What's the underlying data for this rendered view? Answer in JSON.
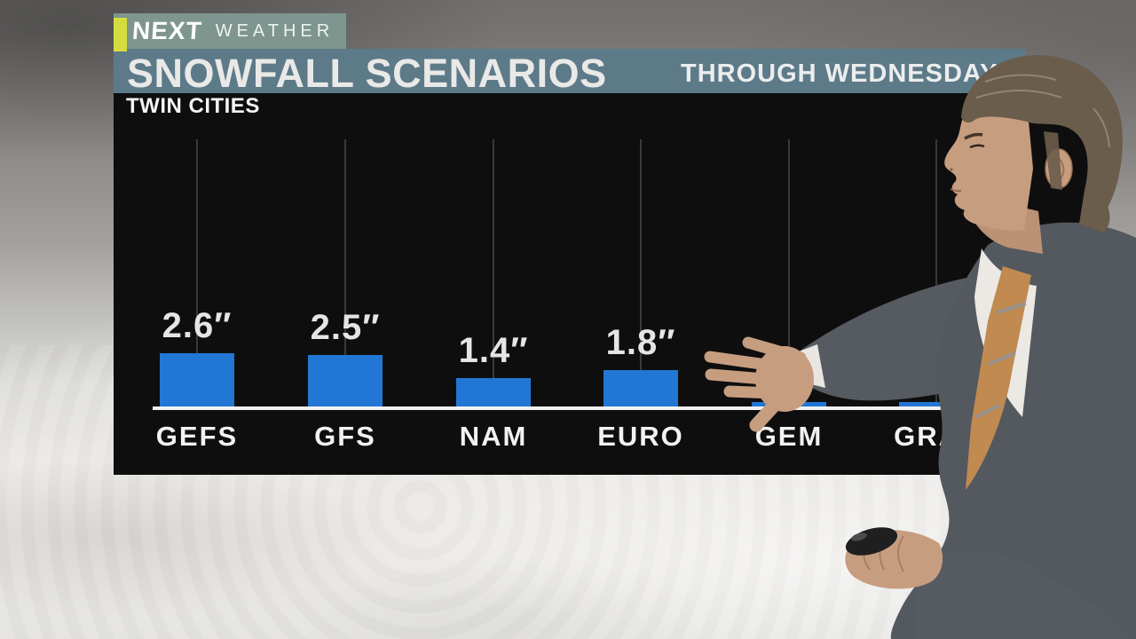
{
  "logo": {
    "brand": "NEXT",
    "product": "WEATHER"
  },
  "header": {
    "title": "SNOWFALL SCENARIOS",
    "banner": "THROUGH WEDNESDAY"
  },
  "chart_data": {
    "type": "bar",
    "title": "SNOWFALL SCENARIOS",
    "subtitle": "TWIN CITIES",
    "period": "THROUGH WEDNESDAY",
    "unit": "inches",
    "categories": [
      "GEFS",
      "GFS",
      "NAM",
      "EURO",
      "GEM",
      "GRAF"
    ],
    "values": [
      2.6,
      2.5,
      1.4,
      1.8,
      0.2,
      0.2
    ],
    "value_labels": [
      "2.6″",
      "2.5″",
      "1.4″",
      "1.8″",
      "",
      ""
    ],
    "bar_color": "#2277d4",
    "panel_background": "#0e0e0e",
    "baseline_color": "#f2f2f2",
    "gridline_color": "#3a3a3a",
    "grid": "vertical line per category",
    "legend": "none",
    "ylim": [
      0,
      13
    ]
  },
  "scene": {
    "presenter": "weather presenter in gray suit pointing at chart, holding presentation remote",
    "background": "snow-covered ground with gray sky"
  },
  "colors": {
    "logo_bar": "#7e968f",
    "logo_accent": "#d5dc40",
    "title_bar": "#5d7a89"
  }
}
